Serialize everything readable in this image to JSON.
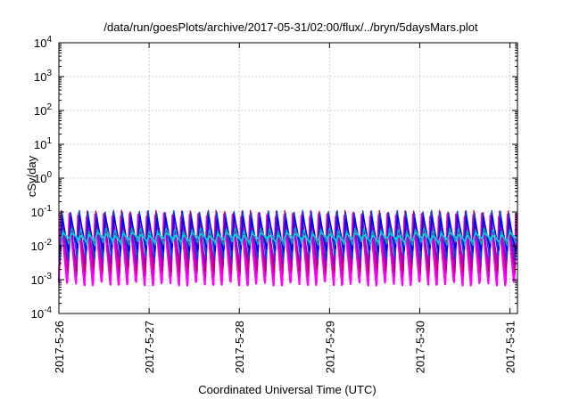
{
  "chart_data": {
    "type": "line",
    "title": "/data/run/goesPlots/archive/2017-05-31/02:00/flux/../bryn/5daysMars.plot",
    "xlabel": "Coordinated Universal Time (UTC)",
    "ylabel": "cSv/day",
    "yscale": "log",
    "ylim": [
      0.0001,
      10000
    ],
    "xlim": [
      "2017-05-26",
      "2017-05-31 02:00"
    ],
    "grid": true,
    "legend": "none",
    "x_ticks": [
      "2017-5-26",
      "2017-5-27",
      "2017-5-28",
      "2017-5-29",
      "2017-5-30",
      "2017-5-31"
    ],
    "y_ticks": [
      {
        "base": "10",
        "exp": "-4"
      },
      {
        "base": "10",
        "exp": "-3"
      },
      {
        "base": "10",
        "exp": "-2"
      },
      {
        "base": "10",
        "exp": "-1"
      },
      {
        "base": "10",
        "exp": "0"
      },
      {
        "base": "10",
        "exp": "1"
      },
      {
        "base": "10",
        "exp": "2"
      },
      {
        "base": "10",
        "exp": "3"
      },
      {
        "base": "10",
        "exp": "4"
      }
    ],
    "cycles_per_day": 10.5,
    "series": [
      {
        "color": "#ff00ff",
        "peak": 0.08,
        "trough": 0.0008
      },
      {
        "color": "#dd00dd",
        "peak": 0.06,
        "trough": 0.0015
      },
      {
        "color": "#c8005a",
        "peak": 0.1,
        "trough": 0.002
      },
      {
        "color": "#9900cc",
        "peak": 0.05,
        "trough": 0.003
      },
      {
        "color": "#0044dd",
        "peak": 0.1,
        "trough": 0.005
      },
      {
        "color": "#0000ff",
        "peak": 0.07,
        "trough": 0.008
      },
      {
        "color": "#00aaaa",
        "peak": 0.03,
        "trough": 0.012
      },
      {
        "color": "#00dddd",
        "peak": 0.022,
        "trough": 0.015
      }
    ]
  }
}
